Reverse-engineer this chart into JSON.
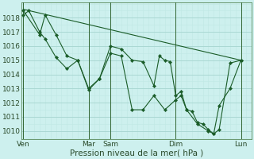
{
  "bg_color": "#cdf0ee",
  "grid_major_color": "#aad8d3",
  "grid_minor_color": "#c0e8e4",
  "line_color": "#1a5c28",
  "vline_color": "#336633",
  "xlabel": "Pression niveau de la mer( hPa )",
  "ylim": [
    1009.4,
    1019.1
  ],
  "yticks": [
    1010,
    1011,
    1012,
    1013,
    1014,
    1015,
    1016,
    1017,
    1018
  ],
  "xlim": [
    -2,
    252
  ],
  "xtick_labels": [
    "Ven",
    "Mar",
    "Sam",
    "Dim",
    "Lun"
  ],
  "xtick_positions": [
    0,
    72,
    96,
    168,
    240
  ],
  "vlines": [
    0,
    72,
    96,
    168,
    240
  ],
  "line1_x": [
    0,
    240
  ],
  "line1_y": [
    1018.6,
    1015.0
  ],
  "line2_x": [
    0,
    6,
    18,
    24,
    36,
    48,
    60,
    72,
    84,
    96,
    108,
    120,
    132,
    144,
    150,
    156,
    162,
    168,
    174,
    180,
    186,
    192,
    198,
    204,
    210,
    216,
    228,
    240
  ],
  "line2_y": [
    1018.2,
    1018.5,
    1017.0,
    1016.5,
    1015.2,
    1014.4,
    1015.0,
    1013.0,
    1013.7,
    1016.0,
    1015.8,
    1015.0,
    1014.9,
    1013.2,
    1015.3,
    1015.0,
    1014.9,
    1012.5,
    1012.8,
    1011.5,
    1011.4,
    1010.6,
    1010.5,
    1010.1,
    1009.8,
    1010.1,
    1014.8,
    1015.0
  ],
  "line3_x": [
    0,
    18,
    24,
    36,
    48,
    60,
    72,
    84,
    96,
    108,
    120,
    132,
    144,
    156,
    168,
    174,
    180,
    192,
    204,
    210,
    216,
    228,
    240
  ],
  "line3_y": [
    1018.5,
    1016.8,
    1018.2,
    1016.8,
    1015.3,
    1015.0,
    1012.9,
    1013.7,
    1015.5,
    1015.3,
    1011.5,
    1011.5,
    1012.5,
    1011.5,
    1012.2,
    1012.5,
    1011.5,
    1010.5,
    1010.0,
    1009.8,
    1011.8,
    1013.0,
    1015.0
  ]
}
